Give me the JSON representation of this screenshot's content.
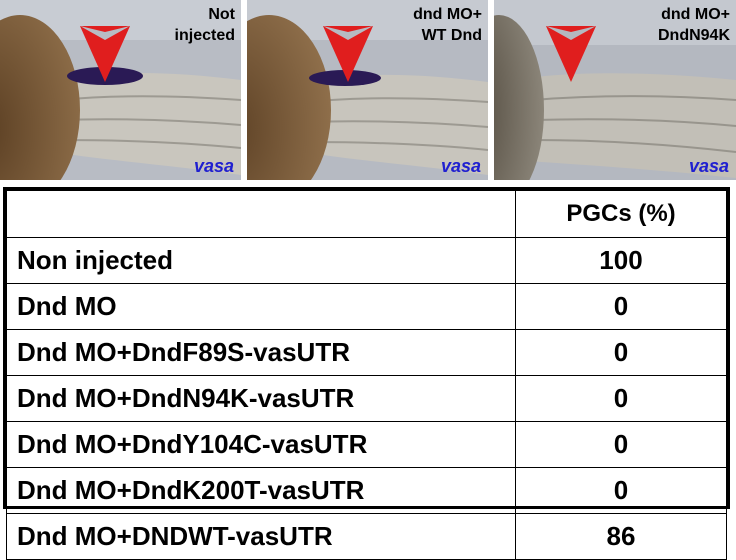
{
  "panels": [
    {
      "label_line1": "Not",
      "label_line2": "injected",
      "gene": "vasa",
      "pgc_signal": true
    },
    {
      "label_line1": "dnd MO+",
      "label_line2": "WT Dnd",
      "gene": "vasa",
      "pgc_signal": true
    },
    {
      "label_line1": "dnd MO+",
      "label_line2": "DndN94K",
      "gene": "vasa",
      "pgc_signal": false
    }
  ],
  "colors": {
    "arrow": "#e01e1e",
    "vasa_label": "#2020d0",
    "pgc_stain": "#2a1a55"
  },
  "table": {
    "header": {
      "condition": "",
      "value": "PGCs (%)"
    },
    "rows": [
      {
        "condition": "Non injected",
        "value": "100"
      },
      {
        "condition": "Dnd MO",
        "value": "0"
      },
      {
        "condition": "Dnd MO+DndF89S-vasUTR",
        "value": "0"
      },
      {
        "condition": "Dnd MO+DndN94K-vasUTR",
        "value": "0"
      },
      {
        "condition": "Dnd MO+DndY104C-vasUTR",
        "value": "0"
      },
      {
        "condition": "Dnd MO+DndK200T-vasUTR",
        "value": "0"
      },
      {
        "condition": "Dnd MO+DNDWT-vasUTR",
        "value": "86"
      }
    ]
  }
}
